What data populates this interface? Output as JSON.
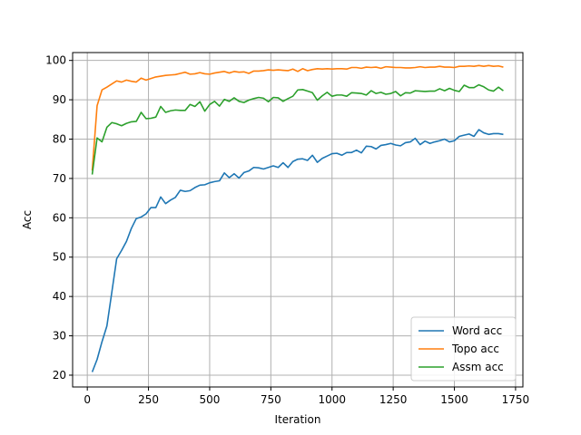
{
  "chart_data": {
    "type": "line",
    "xlabel": "Iteration",
    "ylabel": "Acc",
    "xlim": [
      -60,
      1780
    ],
    "ylim": [
      17,
      102
    ],
    "xticks": [
      0,
      250,
      500,
      750,
      1000,
      1250,
      1500,
      1750
    ],
    "yticks": [
      20,
      30,
      40,
      50,
      60,
      70,
      80,
      90,
      100
    ],
    "grid": true,
    "legend_position": "lower-right",
    "x": [
      20,
      40,
      60,
      80,
      100,
      120,
      140,
      160,
      180,
      200,
      220,
      240,
      260,
      280,
      300,
      320,
      340,
      360,
      380,
      400,
      420,
      440,
      460,
      480,
      500,
      520,
      540,
      560,
      580,
      600,
      620,
      640,
      660,
      680,
      700,
      720,
      740,
      760,
      780,
      800,
      820,
      840,
      860,
      880,
      900,
      920,
      940,
      960,
      980,
      1000,
      1020,
      1040,
      1060,
      1080,
      1100,
      1120,
      1140,
      1160,
      1180,
      1200,
      1220,
      1240,
      1260,
      1280,
      1300,
      1320,
      1340,
      1360,
      1380,
      1400,
      1420,
      1440,
      1460,
      1480,
      1500,
      1520,
      1540,
      1560,
      1580,
      1600,
      1620,
      1640,
      1660,
      1680,
      1700
    ],
    "series": [
      {
        "name": "Word acc",
        "color": "#1f77b4",
        "values": [
          20.8,
          24,
          28.5,
          32.5,
          41,
          49.6,
          51.7,
          54,
          57.3,
          59.8,
          60.2,
          61,
          62.6,
          62.6,
          65.3,
          63.6,
          64.5,
          65.2,
          67,
          66.7,
          66.9,
          67.7,
          68.3,
          68.4,
          68.9,
          69.2,
          69.4,
          71.4,
          70.2,
          71.2,
          70.1,
          71.5,
          71.9,
          72.8,
          72.7,
          72.4,
          72.8,
          73.2,
          72.8,
          74,
          72.8,
          74.3,
          74.9,
          75,
          74.6,
          75.9,
          74.1,
          75.1,
          75.7,
          76.3,
          76.4,
          75.9,
          76.6,
          76.6,
          77.2,
          76.5,
          78.2,
          78.1,
          77.5,
          78.4,
          78.6,
          78.9,
          78.5,
          78.3,
          79.1,
          79.3,
          80.2,
          78.6,
          79.5,
          78.9,
          79.3,
          79.6,
          80,
          79.3,
          79.6,
          80.7,
          81,
          81.3,
          80.7,
          82.4,
          81.6,
          81.2,
          81.4,
          81.4,
          81.2
        ]
      },
      {
        "name": "Topo acc",
        "color": "#ff7f0e",
        "values": [
          72,
          88.5,
          92.5,
          93.2,
          94,
          94.8,
          94.5,
          95,
          94.7,
          94.5,
          95.5,
          95,
          95.4,
          95.8,
          96,
          96.2,
          96.3,
          96.4,
          96.7,
          97,
          96.5,
          96.6,
          96.9,
          96.6,
          96.5,
          96.8,
          97,
          97.2,
          96.8,
          97.2,
          97,
          97.1,
          96.7,
          97.3,
          97.3,
          97.4,
          97.6,
          97.5,
          97.6,
          97.5,
          97.4,
          97.8,
          97.2,
          97.9,
          97.4,
          97.7,
          97.9,
          97.8,
          97.9,
          97.8,
          97.9,
          97.9,
          97.8,
          98.2,
          98.2,
          98,
          98.3,
          98.2,
          98.3,
          98,
          98.4,
          98.3,
          98.2,
          98.2,
          98.1,
          98.1,
          98.2,
          98.4,
          98.2,
          98.3,
          98.3,
          98.5,
          98.3,
          98.3,
          98.2,
          98.5,
          98.5,
          98.6,
          98.5,
          98.7,
          98.5,
          98.7,
          98.5,
          98.6,
          98.3
        ]
      },
      {
        "name": "Assm acc",
        "color": "#2ca02c",
        "values": [
          71,
          80.3,
          79.3,
          83,
          84.2,
          83.9,
          83.4,
          84,
          84.4,
          84.5,
          86.8,
          85.2,
          85.3,
          85.6,
          88.3,
          86.8,
          87.2,
          87.4,
          87.3,
          87.3,
          88.8,
          88.3,
          89.5,
          87.1,
          88.8,
          89.6,
          88.4,
          90.1,
          89.6,
          90.5,
          89.6,
          89.3,
          89.9,
          90.3,
          90.6,
          90.4,
          89.5,
          90.6,
          90.5,
          89.6,
          90.3,
          90.9,
          92.5,
          92.6,
          92.2,
          91.8,
          89.9,
          91,
          91.9,
          90.9,
          91.2,
          91.2,
          90.9,
          91.8,
          91.7,
          91.6,
          91.2,
          92.3,
          91.6,
          91.9,
          91.4,
          91.6,
          92.1,
          91,
          91.8,
          91.7,
          92.3,
          92.2,
          92.1,
          92.2,
          92.2,
          92.8,
          92.3,
          92.9,
          92.4,
          92.1,
          93.7,
          93.1,
          93.1,
          93.8,
          93.3,
          92.5,
          92.2,
          93.2,
          92.3
        ]
      }
    ]
  }
}
